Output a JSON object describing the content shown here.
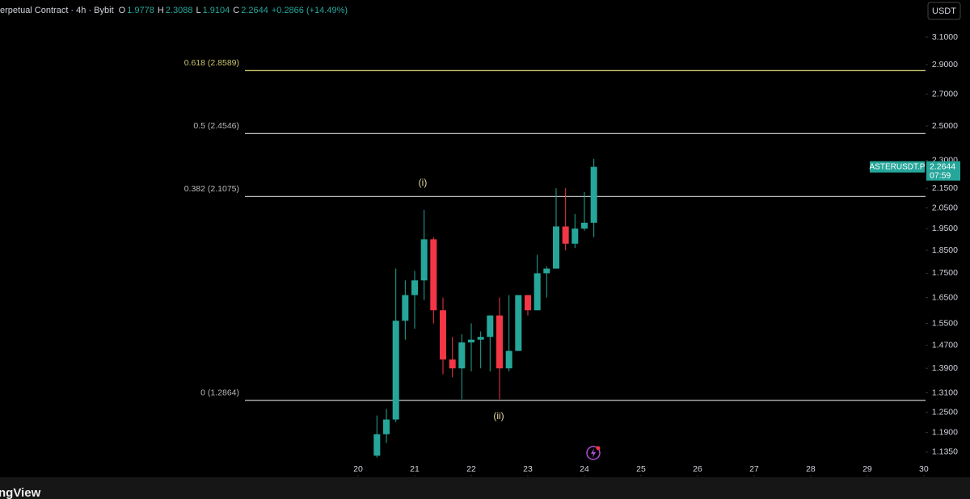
{
  "chart_data": {
    "type": "candlestick",
    "header": {
      "title": "erpetual Contract · 4h · Bybit",
      "ohlc": [
        {
          "key": "O",
          "value": "1.9778"
        },
        {
          "key": "H",
          "value": "2.3088"
        },
        {
          "key": "L",
          "value": "1.9104"
        },
        {
          "key": "C",
          "value": "2.2644"
        }
      ],
      "change": "+0.2866 (+14.49%)"
    },
    "currency_button": "USDT",
    "symbol": "ASTERUSDT.P",
    "last_price": "2.2644",
    "countdown": "07:59",
    "watermark": "ngView",
    "annotations": [
      "(i)",
      "(ii)"
    ],
    "up_color": "#26a69a",
    "down_color": "#f23645",
    "log_scale": true,
    "x": [
      20.333,
      20.5,
      20.667,
      20.833,
      21,
      21.167,
      21.333,
      21.5,
      21.667,
      21.833,
      22,
      22.167,
      22.333,
      22.5,
      22.667,
      22.833,
      23,
      23.167,
      23.333,
      23.5,
      23.667,
      23.833,
      24,
      24.167
    ],
    "open": [
      1.125,
      1.185,
      1.228,
      1.56,
      1.66,
      1.72,
      1.9,
      1.6,
      1.42,
      1.39,
      1.48,
      1.49,
      1.5,
      1.58,
      1.39,
      1.45,
      1.66,
      1.6,
      1.75,
      1.77,
      1.96,
      1.88,
      1.95,
      1.9778
    ],
    "high": [
      1.24,
      1.26,
      1.77,
      1.72,
      1.76,
      2.04,
      1.91,
      1.65,
      1.5,
      1.51,
      1.55,
      1.52,
      1.58,
      1.65,
      1.66,
      1.66,
      1.66,
      1.83,
      1.78,
      2.15,
      2.15,
      2.02,
      2.13,
      2.3088
    ],
    "low": [
      1.12,
      1.16,
      1.22,
      1.49,
      1.53,
      1.64,
      1.55,
      1.37,
      1.36,
      1.29,
      1.38,
      1.39,
      1.38,
      1.29,
      1.38,
      1.45,
      1.58,
      1.6,
      1.65,
      1.77,
      1.85,
      1.86,
      1.94,
      1.9104
    ],
    "close": [
      1.185,
      1.228,
      1.56,
      1.66,
      1.72,
      1.9,
      1.6,
      1.42,
      1.39,
      1.48,
      1.49,
      1.5,
      1.58,
      1.39,
      1.45,
      1.66,
      1.6,
      1.75,
      1.77,
      1.96,
      1.88,
      1.95,
      1.9778,
      2.2644
    ],
    "fib_levels": [
      {
        "value": 2.8589,
        "label": "0.618 (2.8589)",
        "color": "#c8c46c"
      },
      {
        "value": 2.4546,
        "label": "0.5 (2.4546)",
        "color": "#b8b8b8"
      },
      {
        "value": 2.1075,
        "label": "0.382 (2.1075)",
        "color": "#b8b8b8"
      },
      {
        "value": 1.2864,
        "label": "0 (1.2864)",
        "color": "#b8b8b8"
      }
    ],
    "xlim": [
      13.67,
      30.03
    ],
    "xticks": [
      20,
      21,
      22,
      23,
      24,
      25,
      26,
      27,
      28,
      29,
      30
    ],
    "ylim": [
      1.07,
      3.392
    ],
    "yticks": [
      {
        "value": 3.1,
        "label": "3.1000"
      },
      {
        "value": 2.9,
        "label": "2.9000"
      },
      {
        "value": 2.7,
        "label": "2.7000"
      },
      {
        "value": 2.5,
        "label": "2.5000"
      },
      {
        "value": 2.3,
        "label": "2.3000"
      },
      {
        "value": 2.15,
        "label": "2.1500"
      },
      {
        "value": 2.05,
        "label": "2.0500"
      },
      {
        "value": 1.95,
        "label": "1.9500"
      },
      {
        "value": 1.85,
        "label": "1.8500"
      },
      {
        "value": 1.75,
        "label": "1.7500"
      },
      {
        "value": 1.65,
        "label": "1.6500"
      },
      {
        "value": 1.55,
        "label": "1.5500"
      },
      {
        "value": 1.47,
        "label": "1.4700"
      },
      {
        "value": 1.39,
        "label": "1.3900"
      },
      {
        "value": 1.31,
        "label": "1.3100"
      },
      {
        "value": 1.25,
        "label": "1.2500"
      },
      {
        "value": 1.19,
        "label": "1.1900"
      },
      {
        "value": 1.135,
        "label": "1.1350"
      }
    ]
  }
}
